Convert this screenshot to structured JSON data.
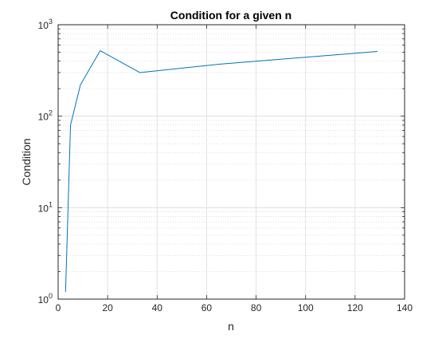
{
  "chart_data": {
    "type": "line",
    "title": "Condition for a given n",
    "xlabel": "n",
    "ylabel": "Condition",
    "x_scale": "linear",
    "y_scale": "log",
    "xlim": [
      0,
      140
    ],
    "ylim": [
      1,
      1000
    ],
    "x_ticks": [
      0,
      20,
      40,
      60,
      80,
      100,
      120,
      140
    ],
    "y_ticks": [
      {
        "value": 1,
        "base": "10",
        "exp": "0"
      },
      {
        "value": 10,
        "base": "10",
        "exp": "1"
      },
      {
        "value": 100,
        "base": "10",
        "exp": "2"
      },
      {
        "value": 1000,
        "base": "10",
        "exp": "3"
      }
    ],
    "grid": true,
    "minor_grid": true,
    "series": [
      {
        "color": "#0072bd",
        "x": [
          3,
          5,
          9,
          17,
          33,
          65,
          129
        ],
        "y": [
          1.2,
          80,
          220,
          520,
          300,
          370,
          510
        ]
      }
    ]
  }
}
